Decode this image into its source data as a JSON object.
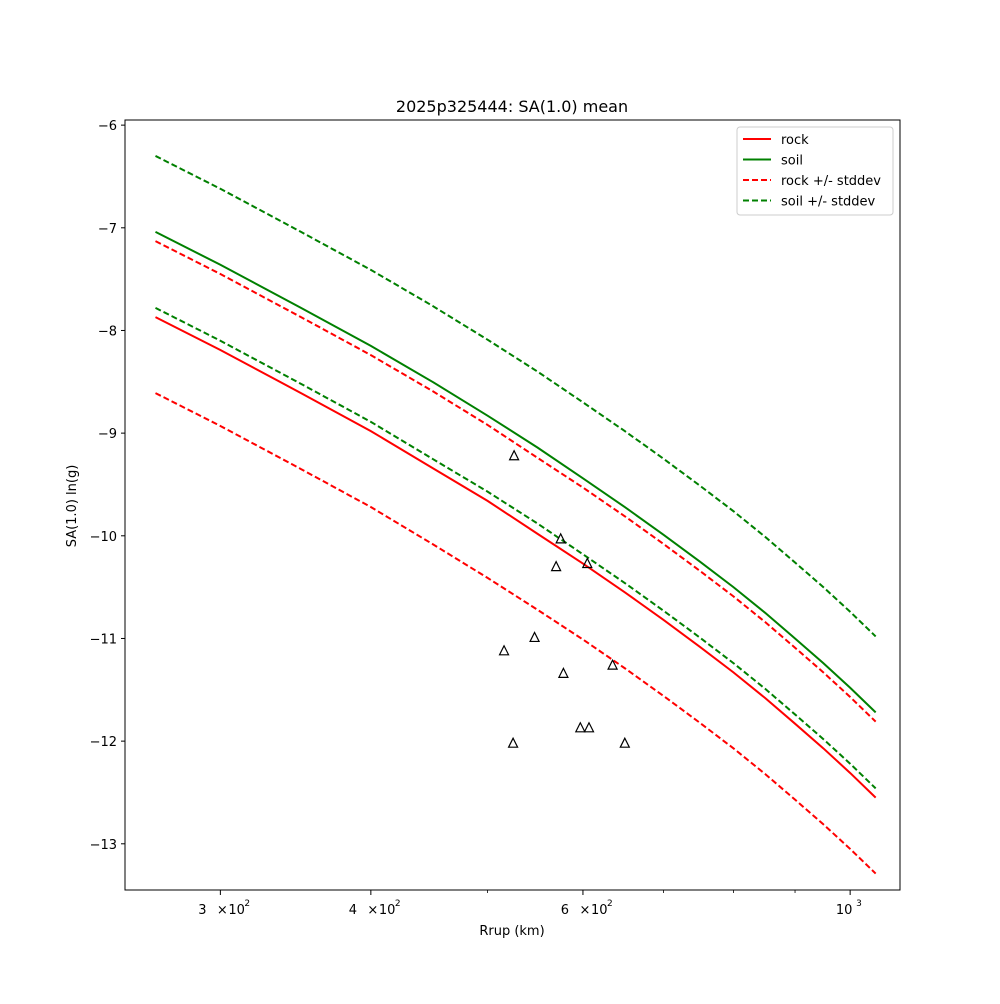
{
  "chart_data": {
    "type": "line",
    "title": "2025p325444: SA(1.0) mean",
    "xlabel": "Rrup (km)",
    "ylabel": "SA(1.0) ln(g)",
    "xscale": "log",
    "xlim": [
      250,
      1100
    ],
    "ylim": [
      -13.45,
      -5.95
    ],
    "x_ticks": [
      {
        "value": 300,
        "base": "3",
        "exp": "2"
      },
      {
        "value": 400,
        "base": "4",
        "exp": "2"
      },
      {
        "value": 600,
        "base": "6",
        "exp": "2"
      },
      {
        "value": 1000,
        "base": "10",
        "exp": "3"
      }
    ],
    "y_ticks": [
      -6,
      -7,
      -8,
      -9,
      -10,
      -11,
      -12,
      -13
    ],
    "y_tick_labels": [
      "−6",
      "−7",
      "−8",
      "−9",
      "−10",
      "−11",
      "−12",
      "−13"
    ],
    "grid": false,
    "legend_position": "top-right",
    "legend": [
      {
        "label": "rock",
        "color": "#ff0000",
        "dashed": false
      },
      {
        "label": "soil",
        "color": "#008000",
        "dashed": false
      },
      {
        "label": "rock +/- stddev",
        "color": "#ff0000",
        "dashed": true
      },
      {
        "label": "soil +/- stddev",
        "color": "#008000",
        "dashed": true
      }
    ],
    "x": [
      265,
      300,
      350,
      400,
      450,
      500,
      550,
      600,
      650,
      700,
      750,
      800,
      850,
      900,
      950,
      1000,
      1050
    ],
    "series": [
      {
        "name": "rock",
        "color": "#ff0000",
        "dashed": false,
        "values": [
          -7.87,
          -8.19,
          -8.61,
          -8.98,
          -9.34,
          -9.66,
          -9.98,
          -10.27,
          -10.55,
          -10.82,
          -11.08,
          -11.33,
          -11.58,
          -11.83,
          -12.07,
          -12.31,
          -12.55
        ]
      },
      {
        "name": "soil",
        "color": "#008000",
        "dashed": false,
        "values": [
          -7.04,
          -7.36,
          -7.78,
          -8.15,
          -8.5,
          -8.83,
          -9.14,
          -9.44,
          -9.72,
          -9.99,
          -10.25,
          -10.5,
          -10.75,
          -11.0,
          -11.24,
          -11.48,
          -11.72
        ]
      },
      {
        "color": "#ff0000",
        "dashed": true,
        "values": [
          -7.13,
          -7.45,
          -7.87,
          -8.24,
          -8.59,
          -8.92,
          -9.24,
          -9.53,
          -9.81,
          -10.08,
          -10.34,
          -10.59,
          -10.84,
          -11.09,
          -11.33,
          -11.57,
          -11.81
        ]
      },
      {
        "color": "#ff0000",
        "dashed": true,
        "values": [
          -8.61,
          -8.93,
          -9.35,
          -9.72,
          -10.08,
          -10.41,
          -10.72,
          -11.01,
          -11.29,
          -11.56,
          -11.82,
          -12.07,
          -12.32,
          -12.57,
          -12.81,
          -13.05,
          -13.29
        ]
      },
      {
        "color": "#008000",
        "dashed": true,
        "values": [
          -6.3,
          -6.62,
          -7.04,
          -7.41,
          -7.76,
          -8.09,
          -8.4,
          -8.7,
          -8.98,
          -9.25,
          -9.51,
          -9.76,
          -10.01,
          -10.26,
          -10.5,
          -10.74,
          -10.98
        ]
      },
      {
        "color": "#008000",
        "dashed": true,
        "values": [
          -7.78,
          -8.1,
          -8.52,
          -8.89,
          -9.25,
          -9.57,
          -9.88,
          -10.18,
          -10.46,
          -10.73,
          -10.99,
          -11.24,
          -11.49,
          -11.74,
          -11.98,
          -12.22,
          -12.46
        ]
      }
    ],
    "observations": {
      "marker": "triangle",
      "points": [
        [
          526,
          -9.22
        ],
        [
          575,
          -10.03
        ],
        [
          570,
          -10.3
        ],
        [
          605,
          -10.27
        ],
        [
          547,
          -10.99
        ],
        [
          516,
          -11.12
        ],
        [
          578,
          -11.34
        ],
        [
          635,
          -11.26
        ],
        [
          597,
          -11.87
        ],
        [
          607,
          -11.87
        ],
        [
          525,
          -12.02
        ],
        [
          650,
          -12.02
        ]
      ]
    }
  }
}
